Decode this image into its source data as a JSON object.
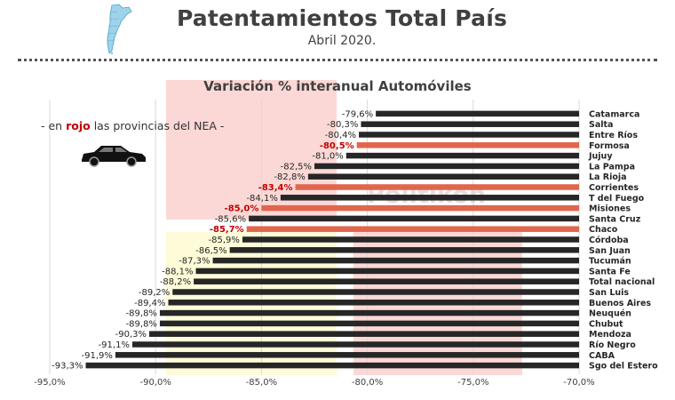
{
  "header": {
    "title": "Patentamientos Total País",
    "subtitle": "Abril 2020."
  },
  "legend_note": {
    "prefix": "- en",
    "highlight": "rojo",
    "suffix": "las provincias del NEA -"
  },
  "watermark": "Politikon",
  "colors": {
    "default_bar": "#262626",
    "nea_bar": "#e0664d",
    "nea_label": "#c00000",
    "band_pink": "#fbd8d6",
    "band_yellow": "#fdfbd8"
  },
  "chart_data": {
    "type": "bar",
    "orientation": "horizontal",
    "title": "Variación % interanual Automóviles",
    "xlim": [
      -95,
      -70
    ],
    "xticks": [
      "-95,0%",
      "-90,0%",
      "-85,0%",
      "-80,0%",
      "-75,0%",
      "-70,0%"
    ],
    "xtick_values": [
      -95,
      -90,
      -85,
      -80,
      -75,
      -70
    ],
    "grid": true,
    "categories": [
      "Catamarca",
      "Salta",
      "Entre Ríos",
      "Formosa",
      "Jujuy",
      "La Pampa",
      "La Rioja",
      "Corrientes",
      "T del Fuego",
      "Misiones",
      "Santa Cruz",
      "Chaco",
      "Córdoba",
      "San Juan",
      "Tucumán",
      "Santa Fe",
      "Total nacional",
      "San Luis",
      "Buenos Aires",
      "Neuquén",
      "Chubut",
      "Mendoza",
      "Río Negro",
      "CABA",
      "Sgo del Estero"
    ],
    "values": [
      -79.6,
      -80.3,
      -80.4,
      -80.5,
      -81.0,
      -82.5,
      -82.8,
      -83.4,
      -84.1,
      -85.0,
      -85.6,
      -85.7,
      -85.9,
      -86.5,
      -87.3,
      -88.1,
      -88.2,
      -89.2,
      -89.4,
      -89.8,
      -89.8,
      -90.3,
      -91.1,
      -91.9,
      -93.3
    ],
    "value_labels": [
      "-79,6%",
      "-80,3%",
      "-80,4%",
      "-80,5%",
      "-81,0%",
      "-82,5%",
      "-82,8%",
      "-83,4%",
      "-84,1%",
      "-85,0%",
      "-85,6%",
      "-85,7%",
      "-85,9%",
      "-86,5%",
      "-87,3%",
      "-88,1%",
      "-88,2%",
      "-89,2%",
      "-89,4%",
      "-89,8%",
      "-89,8%",
      "-90,3%",
      "-91,1%",
      "-91,9%",
      "-93,3%"
    ],
    "highlighted": [
      "Formosa",
      "Corrientes",
      "Misiones",
      "Chaco"
    ]
  }
}
